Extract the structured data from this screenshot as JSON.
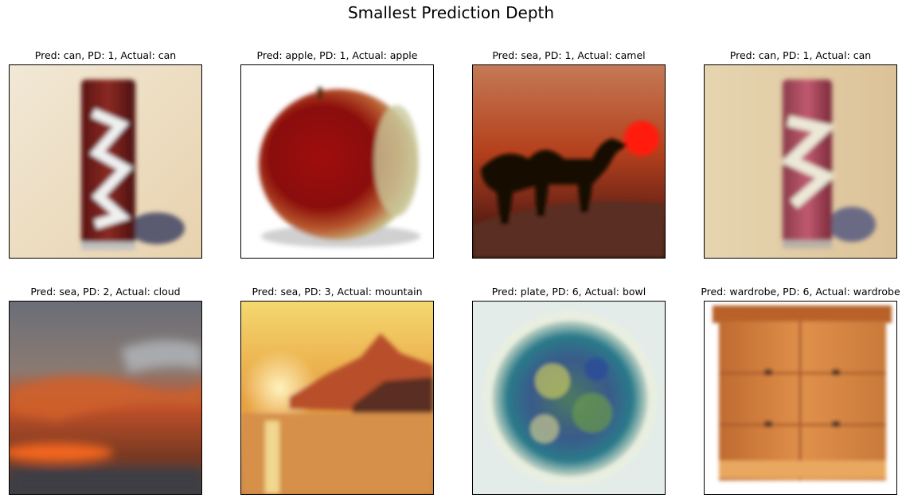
{
  "figure": {
    "title": "Smallest Prediction Depth",
    "panels": [
      {
        "title": "Pred: can, PD: 1, Actual: can",
        "image": "red-soda-can"
      },
      {
        "title": "Pred: apple, PD: 1, Actual: apple",
        "image": "red-apple"
      },
      {
        "title": "Pred: sea, PD: 1, Actual: camel",
        "image": "camel-silhouette-sunset"
      },
      {
        "title": "Pred: can, PD: 1, Actual: can",
        "image": "pink-soda-can"
      },
      {
        "title": "Pred: sea, PD: 2, Actual: cloud",
        "image": "sunset-clouds"
      },
      {
        "title": "Pred: sea, PD: 3, Actual: mountain",
        "image": "mountain-sunset-lake"
      },
      {
        "title": "Pred: plate, PD: 6, Actual: bowl",
        "image": "blue-green-bowl"
      },
      {
        "title": "Pred: wardrobe, PD: 6, Actual: wardrobe",
        "image": "wooden-wardrobe"
      }
    ]
  }
}
